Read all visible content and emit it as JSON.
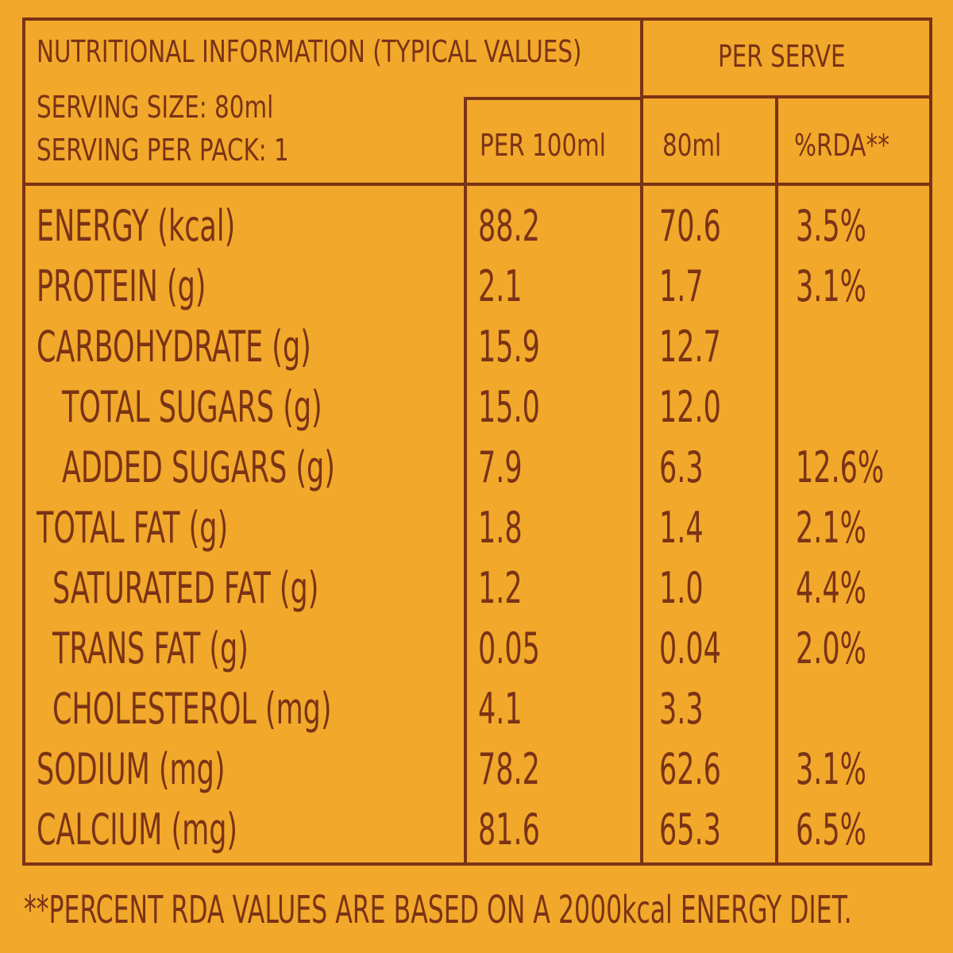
{
  "header": {
    "title": "NUTRITIONAL INFORMATION (TYPICAL VALUES)",
    "serving_size": "SERVING SIZE: 80ml",
    "servings_per_pack": "SERVING PER PACK: 1",
    "per_serve": "PER SERVE",
    "col_per100": "PER 100ml",
    "col_serve": "80ml",
    "col_rda": "%RDA**"
  },
  "rows": [
    {
      "label": "ENERGY (kcal)",
      "per100": "88.2",
      "serve": "70.6",
      "rda": "3.5%"
    },
    {
      "label": "PROTEIN (g)",
      "per100": "2.1",
      "serve": "1.7",
      "rda": "3.1%"
    },
    {
      "label": "CARBOHYDRATE (g)",
      "per100": "15.9",
      "serve": "12.7",
      "rda": ""
    },
    {
      "label": "TOTAL SUGARS (g)",
      "per100": "15.0",
      "serve": "12.0",
      "rda": ""
    },
    {
      "label": "ADDED SUGARS (g)",
      "per100": "7.9",
      "serve": "6.3",
      "rda": "12.6%"
    },
    {
      "label": "TOTAL FAT (g)",
      "per100": "1.8",
      "serve": "1.4",
      "rda": "2.1%"
    },
    {
      "label": "SATURATED FAT (g)",
      "per100": "1.2",
      "serve": "1.0",
      "rda": "4.4%"
    },
    {
      "label": "TRANS FAT (g)",
      "per100": "0.05",
      "serve": "0.04",
      "rda": "2.0%"
    },
    {
      "label": "CHOLESTEROL (mg)",
      "per100": "4.1",
      "serve": "3.3",
      "rda": ""
    },
    {
      "label": "SODIUM (mg)",
      "per100": "78.2",
      "serve": "62.6",
      "rda": "3.1%"
    },
    {
      "label": "CALCIUM (mg)",
      "per100": "81.6",
      "serve": "65.3",
      "rda": "6.5%"
    }
  ],
  "footnote": "**PERCENT RDA VALUES ARE BASED ON A 2000kcal ENERGY DIET.",
  "colors": {
    "background": "#f2a82a",
    "ink": "#7a3316"
  }
}
